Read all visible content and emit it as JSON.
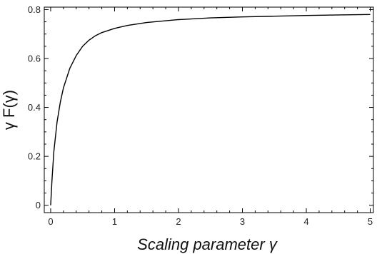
{
  "chart_data": {
    "type": "line",
    "xlabel": "Scaling parameter γ",
    "ylabel": "γ F(γ)",
    "xlim": [
      -0.1,
      5.05
    ],
    "ylim": [
      -0.03,
      0.81
    ],
    "x_ticks": [
      0,
      1,
      2,
      3,
      4,
      5
    ],
    "y_ticks": [
      0,
      0.2,
      0.4,
      0.6,
      0.8
    ],
    "x_tick_labels": [
      "0",
      "1",
      "2",
      "3",
      "4",
      "5"
    ],
    "y_tick_labels": [
      "0",
      "0.2",
      "0.4",
      "0.6",
      "0.8"
    ],
    "grid": false,
    "series": [
      {
        "x": [
          0,
          0.02,
          0.05,
          0.1,
          0.15,
          0.2,
          0.3,
          0.4,
          0.5,
          0.6,
          0.7,
          0.8,
          1.0,
          1.2,
          1.5,
          2.0,
          2.5,
          3.0,
          3.5,
          4.0,
          4.5,
          5.0
        ],
        "y": [
          0,
          0.1,
          0.22,
          0.34,
          0.42,
          0.48,
          0.56,
          0.612,
          0.65,
          0.675,
          0.693,
          0.706,
          0.723,
          0.735,
          0.747,
          0.759,
          0.766,
          0.77,
          0.773,
          0.776,
          0.778,
          0.78
        ]
      }
    ]
  }
}
